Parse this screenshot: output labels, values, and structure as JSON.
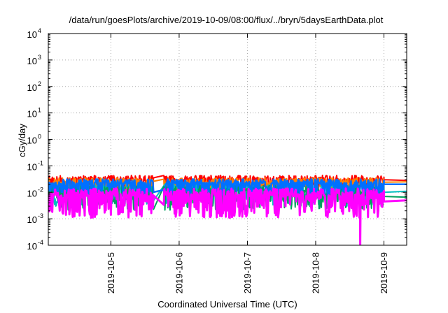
{
  "chart_data": {
    "type": "line",
    "title": "/data/run/goesPlots/archive/2019-10-09/08:00/flux/../bryn/5daysEarthData.plot",
    "xlabel": "Coordinated Universal Time (UTC)",
    "ylabel": "cGy/day",
    "yscale": "log",
    "ylim": [
      0.0001,
      10000
    ],
    "xlim": [
      "2019-10-04T02:00",
      "2019-10-09T08:00"
    ],
    "x_ticks": [
      "2019-10-5",
      "2019-10-6",
      "2019-10-7",
      "2019-10-8",
      "2019-10-9"
    ],
    "y_ticks": [
      {
        "value": 0.0001,
        "base": "10",
        "exp": "-4"
      },
      {
        "value": 0.001,
        "base": "10",
        "exp": "-3"
      },
      {
        "value": 0.01,
        "base": "10",
        "exp": "-2"
      },
      {
        "value": 0.1,
        "base": "10",
        "exp": "-1"
      },
      {
        "value": 1,
        "base": "10",
        "exp": "0"
      },
      {
        "value": 10,
        "base": "10",
        "exp": "1"
      },
      {
        "value": 100,
        "base": "10",
        "exp": "2"
      },
      {
        "value": 1000,
        "base": "10",
        "exp": "3"
      },
      {
        "value": 10000,
        "base": "10",
        "exp": "4"
      }
    ],
    "grid": true,
    "legend": "none",
    "series": [
      {
        "color": "#ff0000",
        "baseline": 0.032,
        "amplitude": 0.55,
        "seed": 11,
        "points": [
          [
            "2019-10-09T00:00",
            0.03
          ],
          [
            "2019-10-09T08:00",
            0.028
          ]
        ]
      },
      {
        "color": "#ff7f00",
        "baseline": 0.026,
        "amplitude": 0.55,
        "seed": 23,
        "points": [
          [
            "2019-10-09T00:00",
            0.024
          ],
          [
            "2019-10-09T08:00",
            0.025
          ]
        ]
      },
      {
        "color": "#00c0c0",
        "baseline": 0.015,
        "amplitude": 0.7,
        "seed": 37,
        "points": [
          [
            "2019-10-09T00:00",
            0.01
          ],
          [
            "2019-10-09T08:00",
            0.011
          ]
        ]
      },
      {
        "color": "#00a060",
        "baseline": 0.012,
        "amplitude": 0.75,
        "seed": 41,
        "points": [
          [
            "2019-10-09T00:00",
            0.007
          ],
          [
            "2019-10-09T08:00",
            0.0065
          ]
        ]
      },
      {
        "color": "#0070ff",
        "baseline": 0.024,
        "amplitude": 0.5,
        "seed": 53,
        "points": [
          [
            "2019-10-09T00:00",
            0.02
          ],
          [
            "2019-10-09T08:00",
            0.02
          ]
        ]
      },
      {
        "color": "#ff00ff",
        "baseline": 0.0085,
        "amplitude": 0.9,
        "seed": 67,
        "points": [
          [
            "2019-10-08T15:40",
            0.0001
          ],
          [
            "2019-10-09T00:00",
            0.0045
          ],
          [
            "2019-10-09T08:00",
            0.005
          ]
        ]
      }
    ]
  }
}
